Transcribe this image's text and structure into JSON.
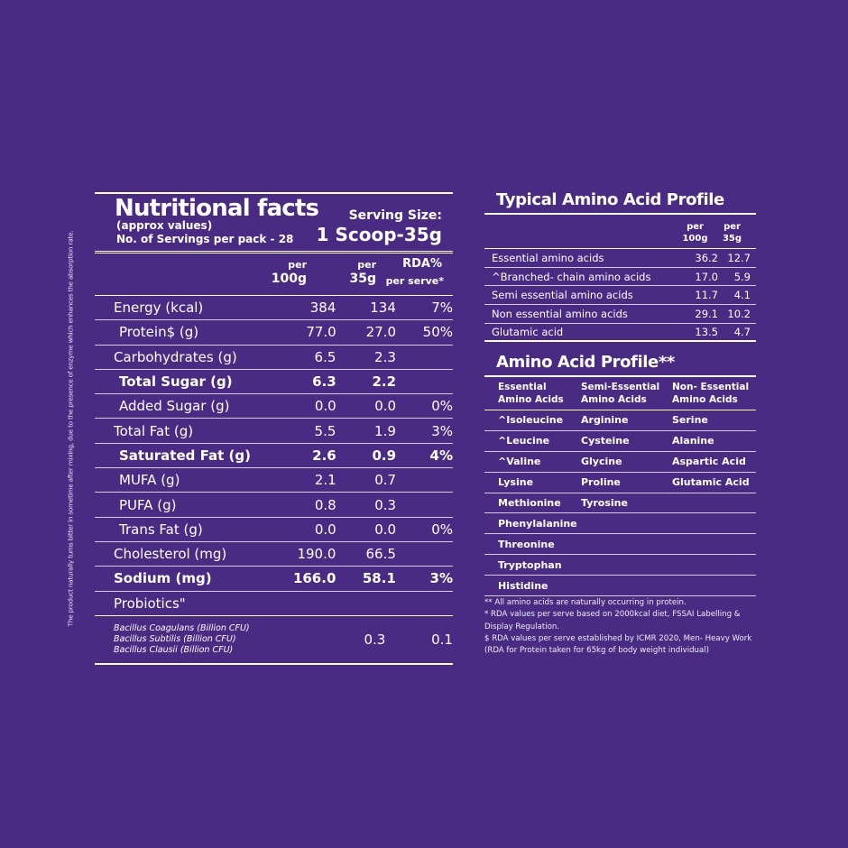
{
  "side_note": "The product naturally turns bitter in sometime after mixing, due to the presence of enzyme which enhances the absorption rate.",
  "nutrition": {
    "title": "Nutritional facts",
    "approx": "(approx values)",
    "servings": "No. of Servings per pack - 28",
    "serving_label": "Serving Size:",
    "serving_value": "1 Scoop-35g",
    "col1": [
      "per",
      "100g"
    ],
    "col2": [
      "per",
      "35g"
    ],
    "col3": [
      "RDA%",
      "per serve*"
    ],
    "rows": [
      {
        "label": "Energy (kcal)",
        "v1": "384",
        "v2": "134",
        "v3": "7%",
        "bold": false
      },
      {
        "label": "Protein$ (g)",
        "v1": "77.0",
        "v2": "27.0",
        "v3": "50%",
        "bold": false,
        "indent": true
      },
      {
        "label": "Carbohydrates (g)",
        "v1": "6.5",
        "v2": "2.3",
        "v3": "",
        "bold": false
      },
      {
        "label": "Total Sugar (g)",
        "v1": "6.3",
        "v2": "2.2",
        "v3": "",
        "bold": true,
        "indent": true
      },
      {
        "label": "Added Sugar (g)",
        "v1": "0.0",
        "v2": "0.0",
        "v3": "0%",
        "bold": false,
        "indent": true
      },
      {
        "label": "Total Fat (g)",
        "v1": "5.5",
        "v2": "1.9",
        "v3": "3%",
        "bold": false
      },
      {
        "label": "Saturated Fat (g)",
        "v1": "2.6",
        "v2": "0.9",
        "v3": "4%",
        "bold": true,
        "indent": true
      },
      {
        "label": "MUFA (g)",
        "v1": "2.1",
        "v2": "0.7",
        "v3": "",
        "bold": false,
        "indent": true
      },
      {
        "label": "PUFA (g)",
        "v1": "0.8",
        "v2": "0.3",
        "v3": "",
        "bold": false,
        "indent": true
      },
      {
        "label": "Trans Fat (g)",
        "v1": "0.0",
        "v2": "0.0",
        "v3": "0%",
        "bold": false,
        "indent": true
      },
      {
        "label": "Cholesterol (mg)",
        "v1": "190.0",
        "v2": "66.5",
        "v3": "",
        "bold": false
      },
      {
        "label": "Sodium (mg)",
        "v1": "166.0",
        "v2": "58.1",
        "v3": "3%",
        "bold": true
      },
      {
        "label": "Probiotics\"",
        "v1": "",
        "v2": "",
        "v3": "",
        "bold": false
      }
    ],
    "probiotics": {
      "lines": [
        "Bacillus Coagulans (Billion CFU)",
        "Bacillus Subtilis (Billion CFU)",
        "Bacillus Clausii (Billion CFU)"
      ],
      "v1": "0.3",
      "v2": "0.1"
    }
  },
  "typical": {
    "title": "Typical Amino Acid Profile",
    "col1": [
      "per",
      "100g"
    ],
    "col2": [
      "per",
      "35g"
    ],
    "rows": [
      {
        "label": "Essential amino acids",
        "v1": "36.2",
        "v2": "12.7"
      },
      {
        "label": "^Branched- chain amino acids",
        "v1": "17.0",
        "v2": "5.9"
      },
      {
        "label": "Semi essential amino acids",
        "v1": "11.7",
        "v2": "4.1"
      },
      {
        "label": "Non essential amino acids",
        "v1": "29.1",
        "v2": "10.2"
      },
      {
        "label": "Glutamic acid",
        "v1": "13.5",
        "v2": "4.7"
      }
    ]
  },
  "amino": {
    "title": "Amino Acid Profile**",
    "headers": [
      "Essential Amino Acids",
      "Semi-Essential Amino Acids",
      "Non- Essential Amino Acids"
    ],
    "rows": [
      [
        "^Isoleucine",
        "Arginine",
        "Serine"
      ],
      [
        "^Leucine",
        "Cysteine",
        "Alanine"
      ],
      [
        "^Valine",
        "Glycine",
        "Aspartic Acid"
      ],
      [
        "Lysine",
        "Proline",
        "Glutamic Acid"
      ],
      [
        "Methionine",
        "Tyrosine",
        ""
      ],
      [
        "Phenylalanine",
        "",
        ""
      ],
      [
        "Threonine",
        "",
        ""
      ],
      [
        "Tryptophan",
        "",
        ""
      ],
      [
        "Histidine",
        "",
        ""
      ]
    ]
  },
  "notes": [
    "** All amino acids are naturally occurring in protein.",
    "* RDA values per serve based on 2000kcal diet, FSSAI Labelling & Display Regulation.",
    "$ RDA values per serve established by ICMR 2020, Men- Heavy Work (RDA for Protein taken for 65kg of body weight individual)"
  ],
  "colors": {
    "background": "#4a2b84",
    "text": "#ffffff"
  }
}
